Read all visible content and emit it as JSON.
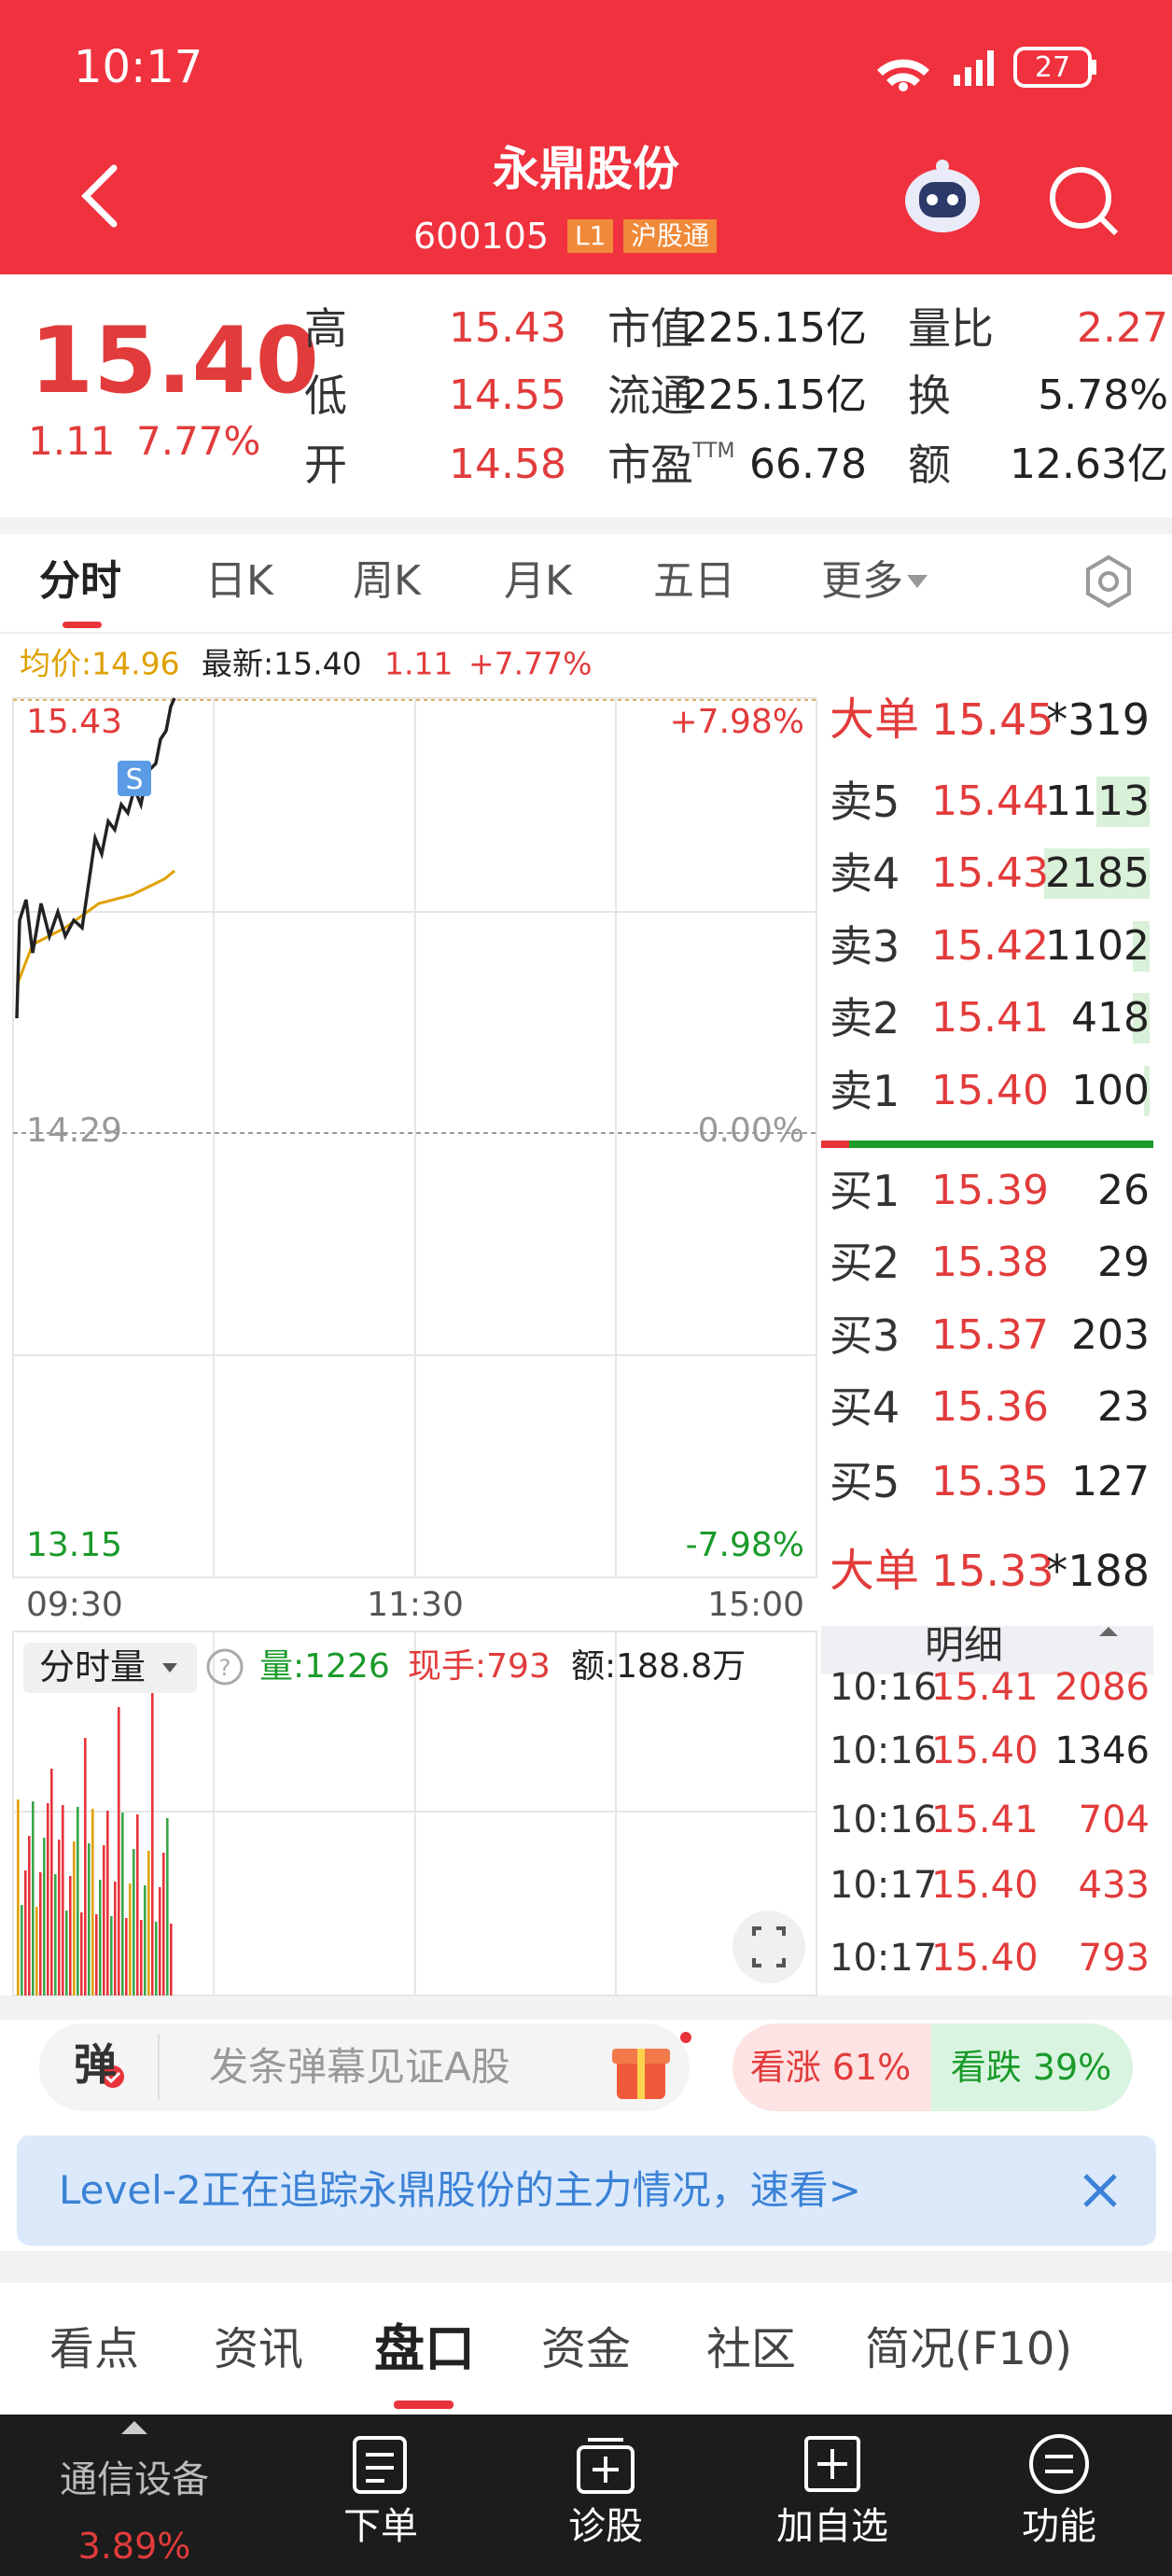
{
  "status": {
    "time": "10:17",
    "battery": "27"
  },
  "header": {
    "title": "永鼎股份",
    "code": "600105",
    "badges": [
      "L1",
      "沪股通"
    ]
  },
  "quote": {
    "price": "15.40",
    "change": "1.11",
    "change_pct": "7.77%",
    "ttm": "TTM",
    "stats": [
      [
        "高",
        "15.43",
        "市值",
        "225.15亿",
        "量比",
        "2.27"
      ],
      [
        "低",
        "14.55",
        "流通",
        "225.15亿",
        "换",
        "5.78%"
      ],
      [
        "开",
        "14.58",
        "市盈",
        "66.78",
        "额",
        "12.63亿"
      ]
    ]
  },
  "tabs": [
    "分时",
    "日K",
    "周K",
    "月K",
    "五日",
    "更多"
  ],
  "chart": {
    "avg": "均价:14.96",
    "latest": "最新:15.40",
    "change": "1.11",
    "change_pct": "+7.77%",
    "high": "15.43",
    "high_pct": "+7.98%",
    "mid": "14.29",
    "mid_pct": "0.00%",
    "low": "13.15",
    "low_pct": "-7.98%",
    "times": [
      "09:30",
      "11:30",
      "15:00"
    ],
    "marker": "S"
  },
  "volume": {
    "label": "分时量",
    "vol": "量:1226",
    "hand": "现手:793",
    "amount": "额:188.8万"
  },
  "orderbook": {
    "top_big": [
      "大单",
      "15.45",
      "*319"
    ],
    "sell": [
      [
        "卖5",
        "15.44",
        "1113"
      ],
      [
        "卖4",
        "15.43",
        "2185"
      ],
      [
        "卖3",
        "15.42",
        "1102"
      ],
      [
        "卖2",
        "15.41",
        "418"
      ],
      [
        "卖1",
        "15.40",
        "100"
      ]
    ],
    "buy": [
      [
        "买1",
        "15.39",
        "26"
      ],
      [
        "买2",
        "15.38",
        "29"
      ],
      [
        "买3",
        "15.37",
        "203"
      ],
      [
        "买4",
        "15.36",
        "23"
      ],
      [
        "买5",
        "15.35",
        "127"
      ]
    ],
    "bottom_big": [
      "大单",
      "15.33",
      "*188"
    ],
    "detail": "明细",
    "ticks": [
      [
        "10:16",
        "15.41",
        "2086"
      ],
      [
        "10:16",
        "15.40",
        "1346"
      ],
      [
        "10:16",
        "15.41",
        "704"
      ],
      [
        "10:17",
        "15.40",
        "433"
      ],
      [
        "10:17",
        "15.40",
        "793"
      ]
    ]
  },
  "barrage": {
    "icon": "弹",
    "placeholder": "发条弹幕见证A股",
    "up": "看涨 61%",
    "down": "看跌 39%"
  },
  "banner": {
    "text": "Level-2正在追踪永鼎股份的主力情况，速看>"
  },
  "bottom_tabs": [
    "看点",
    "资讯",
    "盘口",
    "资金",
    "社区",
    "简况(F10)"
  ],
  "nav": {
    "sector": "通信设备",
    "sector_pct": "3.89%",
    "items": [
      "下单",
      "诊股",
      "加自选",
      "功能"
    ]
  }
}
